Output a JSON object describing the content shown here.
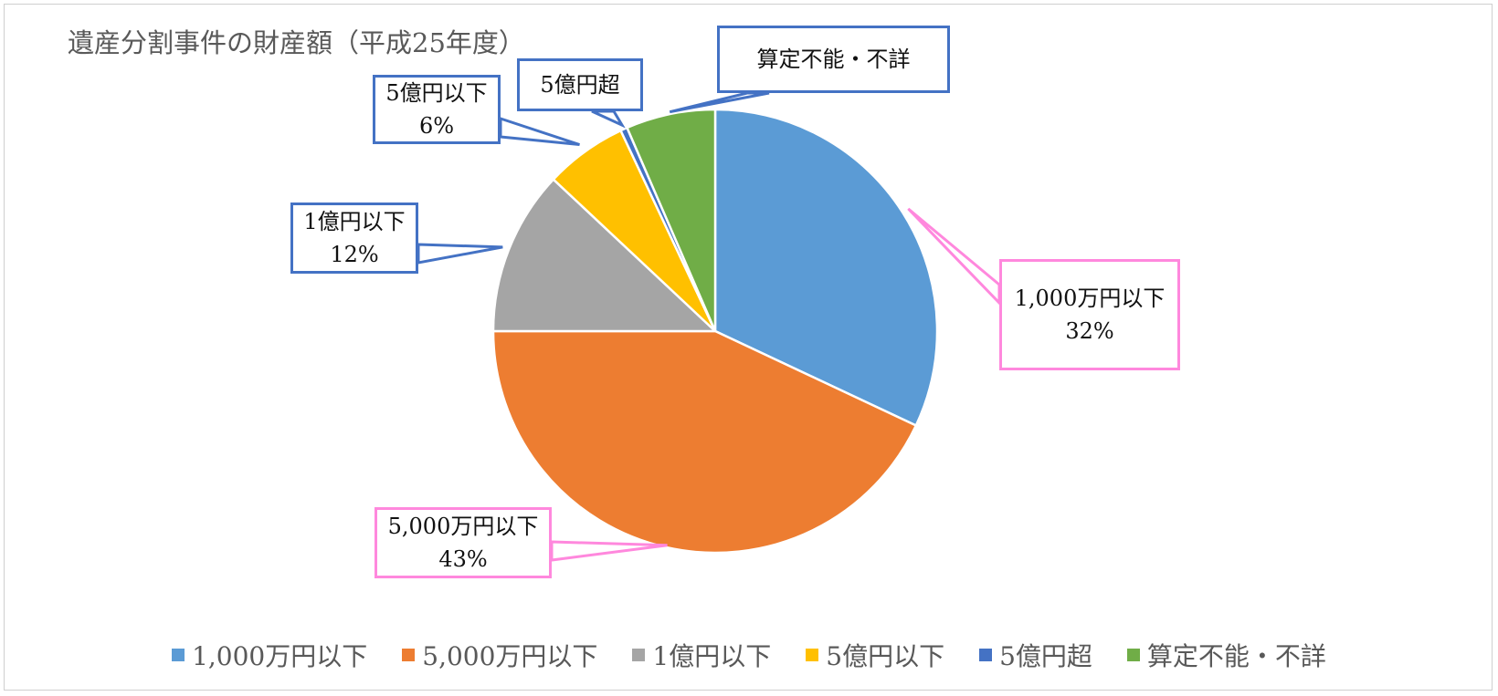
{
  "chart_data": {
    "type": "pie",
    "title": "遺産分割事件の財産額（平成25年度）",
    "slices": [
      {
        "label": "1,000万円以下",
        "value": 32,
        "value_label": "32%",
        "color": "#5B9BD5"
      },
      {
        "label": "5,000万円以下",
        "value": 43,
        "value_label": "43%",
        "color": "#ED7D31"
      },
      {
        "label": "1億円以下",
        "value": 12,
        "value_label": "12%",
        "color": "#A5A5A5"
      },
      {
        "label": "5億円以下",
        "value": 6,
        "value_label": "6%",
        "color": "#FFC000"
      },
      {
        "label": "5億円超",
        "value": 0.5,
        "value_label": "",
        "color": "#4472C4"
      },
      {
        "label": "算定不能・不詳",
        "value": 6.5,
        "value_label": "",
        "color": "#70AD47"
      }
    ],
    "legend_position": "bottom"
  },
  "colors": {
    "callout_pink": "#FF88DD",
    "callout_blue": "#4472C4"
  }
}
